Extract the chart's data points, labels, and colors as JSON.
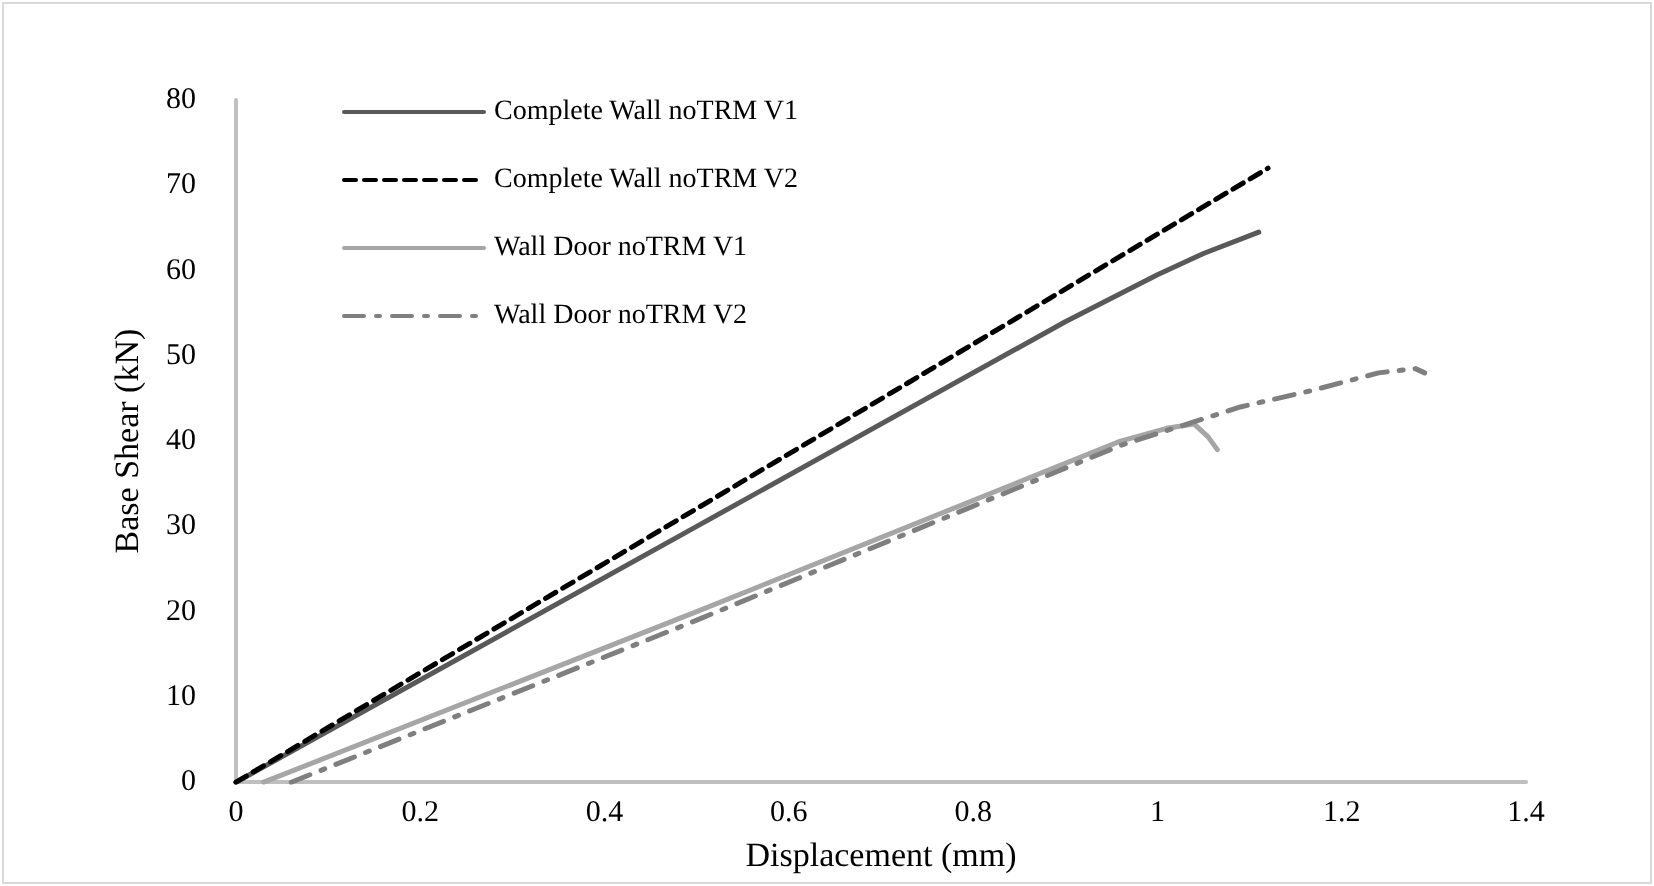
{
  "chart_data": {
    "type": "line",
    "xlabel": "Displacement (mm)",
    "ylabel": "Base Shear (kN)",
    "xlim": [
      0,
      1.4
    ],
    "xticks": [
      0,
      0.2,
      0.4,
      0.6,
      0.8,
      1,
      1.2,
      1.4
    ],
    "ylim": [
      0,
      80
    ],
    "yticks": [
      0,
      10,
      20,
      30,
      40,
      50,
      60,
      70,
      80
    ],
    "grid": false,
    "legend": "top left",
    "marker": "none",
    "series": [
      {
        "name": "Complete Wall noTRM V1",
        "color": "#595959",
        "line_style": "solid",
        "x": [
          0,
          0.5,
          0.9,
          1.0,
          1.05,
          1.11
        ],
        "values": [
          0,
          30,
          54,
          59.5,
          62,
          64.5
        ]
      },
      {
        "name": "Complete Wall noTRM V2",
        "color": "#000000",
        "line_style": "dashed",
        "x": [
          0,
          0.6,
          1.12
        ],
        "values": [
          0,
          38.5,
          72
        ]
      },
      {
        "name": "Wall Door noTRM V1",
        "color": "#a6a6a6",
        "line_style": "solid",
        "x": [
          0.03,
          0.5,
          0.96,
          1.01,
          1.04,
          1.055,
          1.065
        ],
        "values": [
          0,
          20,
          40,
          41.5,
          42,
          40.5,
          39
        ]
      },
      {
        "name": "Wall Door noTRM V2",
        "color": "#7f7f7f",
        "line_style": "dashdot",
        "x": [
          0.06,
          0.5,
          0.96,
          1.09,
          1.17,
          1.24,
          1.28,
          1.29
        ],
        "values": [
          0,
          19,
          39.5,
          44,
          46,
          48,
          48.5,
          48
        ]
      }
    ]
  }
}
